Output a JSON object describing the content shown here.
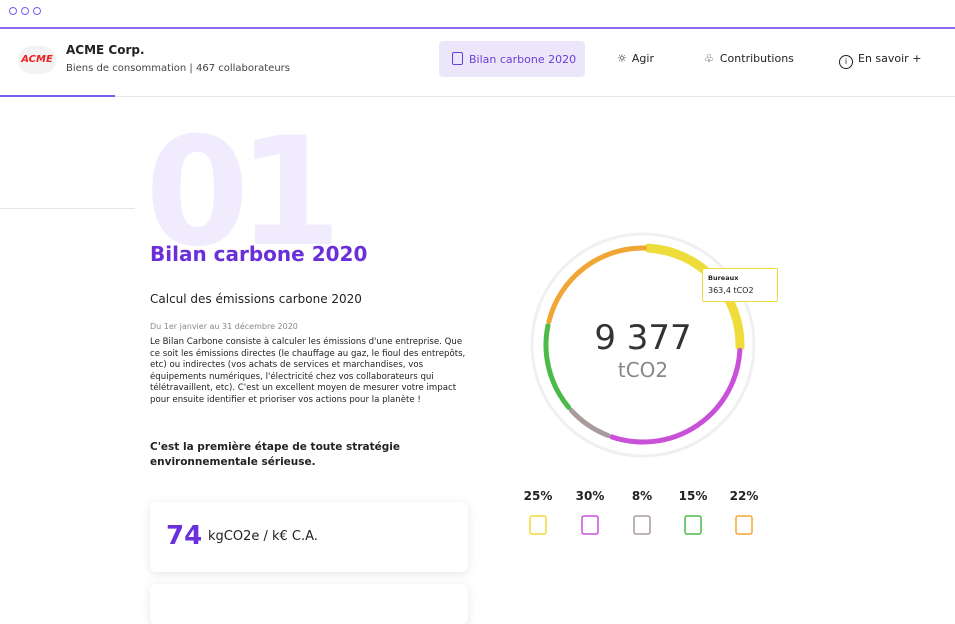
{
  "header": {
    "logo": "ACME",
    "company": "ACME Corp.",
    "subtitle": "Biens de consommation | 467 collaborateurs"
  },
  "nav": [
    "Bilan carbone 2020",
    "Agir",
    "Contributions",
    "En savoir +"
  ],
  "section": {
    "number": "01",
    "title": "Bilan carbone 2020",
    "subtitle": "Calcul des émissions carbone 2020",
    "date": "Du 1er janvier au 31 décembre 2020",
    "body": "Le Bilan Carbone consiste à calculer les émissions d'une entreprise. Que ce soit les émissions directes (le chauffage au gaz, le fioul des entrepôts, etc) ou indirectes (vos achats de services et marchandises, vos équipements numériques, l'électricité chez vos collaborateurs qui télétravaillent, etc). C'est un excellent moyen de mesurer votre impact pour ensuite identifier et prioriser vos actions pour la planète !",
    "emphasis": "C'est la première étape de toute stratégie environnementale sérieuse."
  },
  "kpi": {
    "value": 74,
    "unit": "kgCO2e / k€ C.A."
  },
  "donut": {
    "total": "9 377",
    "unit": "tCO2",
    "tooltip": {
      "label": "Bureaux",
      "value": "363,4 tCO2"
    },
    "segments": [
      {
        "value": 25,
        "label": "25%",
        "color": "#eedc3a"
      },
      {
        "value": 30,
        "label": "30%",
        "color": "#c950d8"
      },
      {
        "value": 8,
        "label": "8%",
        "color": "#a99b9b"
      },
      {
        "value": 15,
        "label": "15%",
        "color": "#4cba48"
      },
      {
        "value": 22,
        "label": "22%",
        "color": "#f0a535"
      }
    ]
  }
}
